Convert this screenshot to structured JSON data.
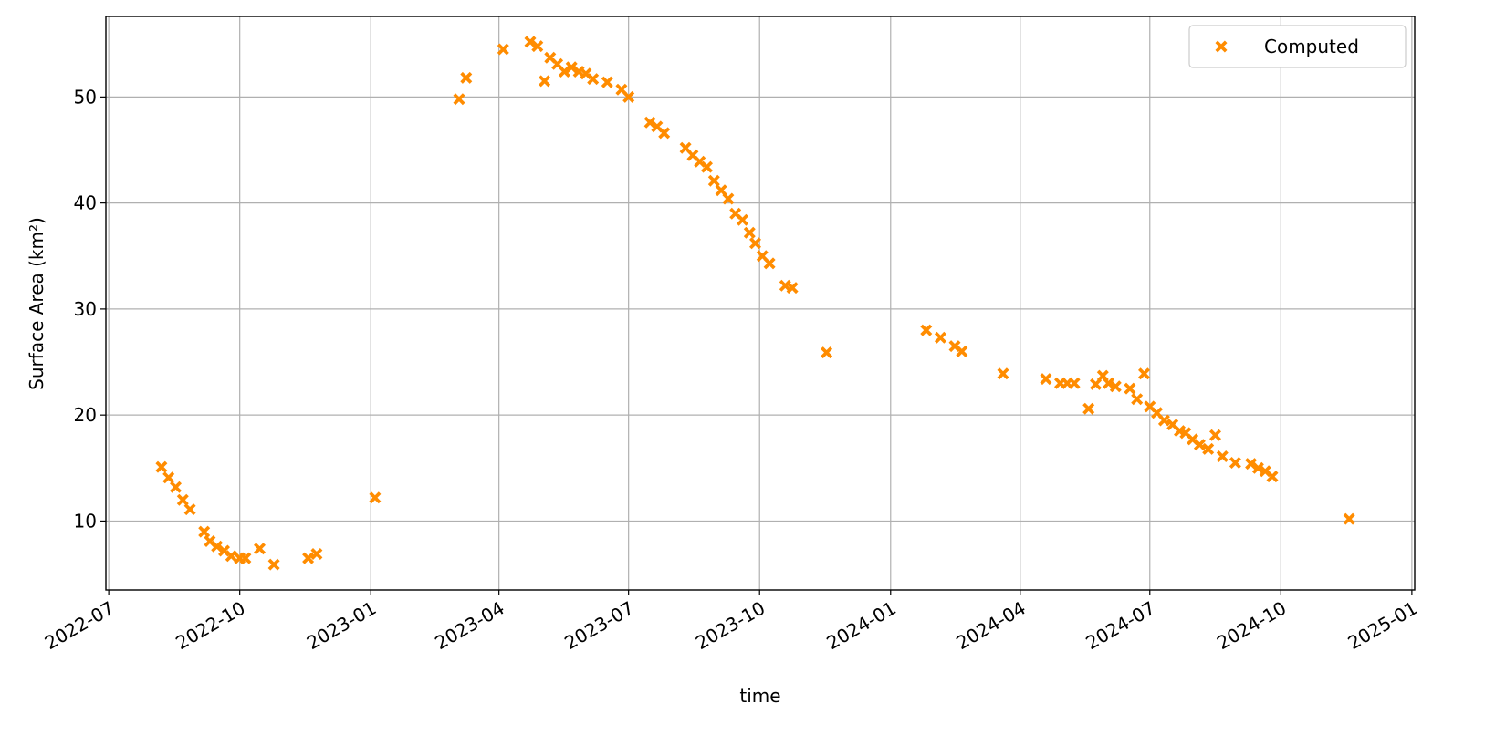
{
  "chart_data": {
    "type": "scatter",
    "x_label": "time",
    "y_label": "Surface Area (km²)",
    "x": [
      "2022-08-07",
      "2022-08-12",
      "2022-08-17",
      "2022-08-22",
      "2022-08-27",
      "2022-09-06",
      "2022-09-10",
      "2022-09-15",
      "2022-09-20",
      "2022-09-25",
      "2022-10-01",
      "2022-10-05",
      "2022-10-15",
      "2022-10-25",
      "2022-11-18",
      "2022-11-24",
      "2023-01-04",
      "2023-03-04",
      "2023-03-09",
      "2023-04-04",
      "2023-04-23",
      "2023-04-28",
      "2023-05-03",
      "2023-05-07",
      "2023-05-12",
      "2023-05-17",
      "2023-05-22",
      "2023-05-27",
      "2023-06-01",
      "2023-06-06",
      "2023-06-16",
      "2023-06-26",
      "2023-07-01",
      "2023-07-16",
      "2023-07-21",
      "2023-07-26",
      "2023-08-10",
      "2023-08-15",
      "2023-08-20",
      "2023-08-25",
      "2023-08-30",
      "2023-09-04",
      "2023-09-09",
      "2023-09-14",
      "2023-09-19",
      "2023-09-24",
      "2023-09-28",
      "2023-10-03",
      "2023-10-08",
      "2023-10-19",
      "2023-10-24",
      "2023-11-17",
      "2024-01-26",
      "2024-02-05",
      "2024-02-15",
      "2024-02-20",
      "2024-03-20",
      "2024-04-19",
      "2024-04-29",
      "2024-05-04",
      "2024-05-09",
      "2024-05-19",
      "2024-05-24",
      "2024-05-29",
      "2024-06-02",
      "2024-06-07",
      "2024-06-17",
      "2024-06-22",
      "2024-06-27",
      "2024-07-01",
      "2024-07-06",
      "2024-07-11",
      "2024-07-17",
      "2024-07-22",
      "2024-07-26",
      "2024-07-31",
      "2024-08-05",
      "2024-08-11",
      "2024-08-16",
      "2024-08-21",
      "2024-08-30",
      "2024-09-10",
      "2024-09-15",
      "2024-09-20",
      "2024-09-25",
      "2024-11-18"
    ],
    "series": [
      {
        "name": "Computed",
        "color": "#ff8c00",
        "values": [
          15.1,
          14.1,
          13.2,
          12.0,
          11.1,
          9.0,
          8.1,
          7.6,
          7.2,
          6.7,
          6.5,
          6.5,
          7.4,
          5.9,
          6.5,
          6.9,
          12.2,
          49.8,
          51.8,
          54.5,
          55.2,
          54.8,
          51.5,
          53.7,
          53.1,
          52.4,
          52.8,
          52.4,
          52.2,
          51.7,
          51.4,
          50.7,
          50.0,
          47.6,
          47.2,
          46.6,
          45.2,
          44.5,
          43.9,
          43.4,
          42.1,
          41.2,
          40.4,
          39.0,
          38.4,
          37.2,
          36.2,
          35.0,
          34.3,
          32.2,
          32.0,
          25.9,
          28.0,
          27.3,
          26.5,
          26.0,
          23.9,
          23.4,
          23.0,
          23.0,
          23.0,
          20.6,
          22.9,
          23.7,
          23.0,
          22.7,
          22.5,
          21.5,
          23.9,
          20.8,
          20.2,
          19.5,
          19.1,
          18.5,
          18.3,
          17.7,
          17.2,
          16.8,
          18.1,
          16.1,
          15.5,
          15.4,
          15.0,
          14.7,
          14.2,
          10.2
        ]
      }
    ],
    "xlim": [
      "2022-06-29",
      "2025-01-03"
    ],
    "xticks": [
      "2022-07",
      "2022-10",
      "2023-01",
      "2023-04",
      "2023-07",
      "2023-10",
      "2024-01",
      "2024-04",
      "2024-07",
      "2024-10",
      "2025-01"
    ],
    "ylim": [
      3.5,
      57.6
    ],
    "yticks": [
      10,
      20,
      30,
      40,
      50
    ],
    "grid": true,
    "legend": "upper right"
  }
}
